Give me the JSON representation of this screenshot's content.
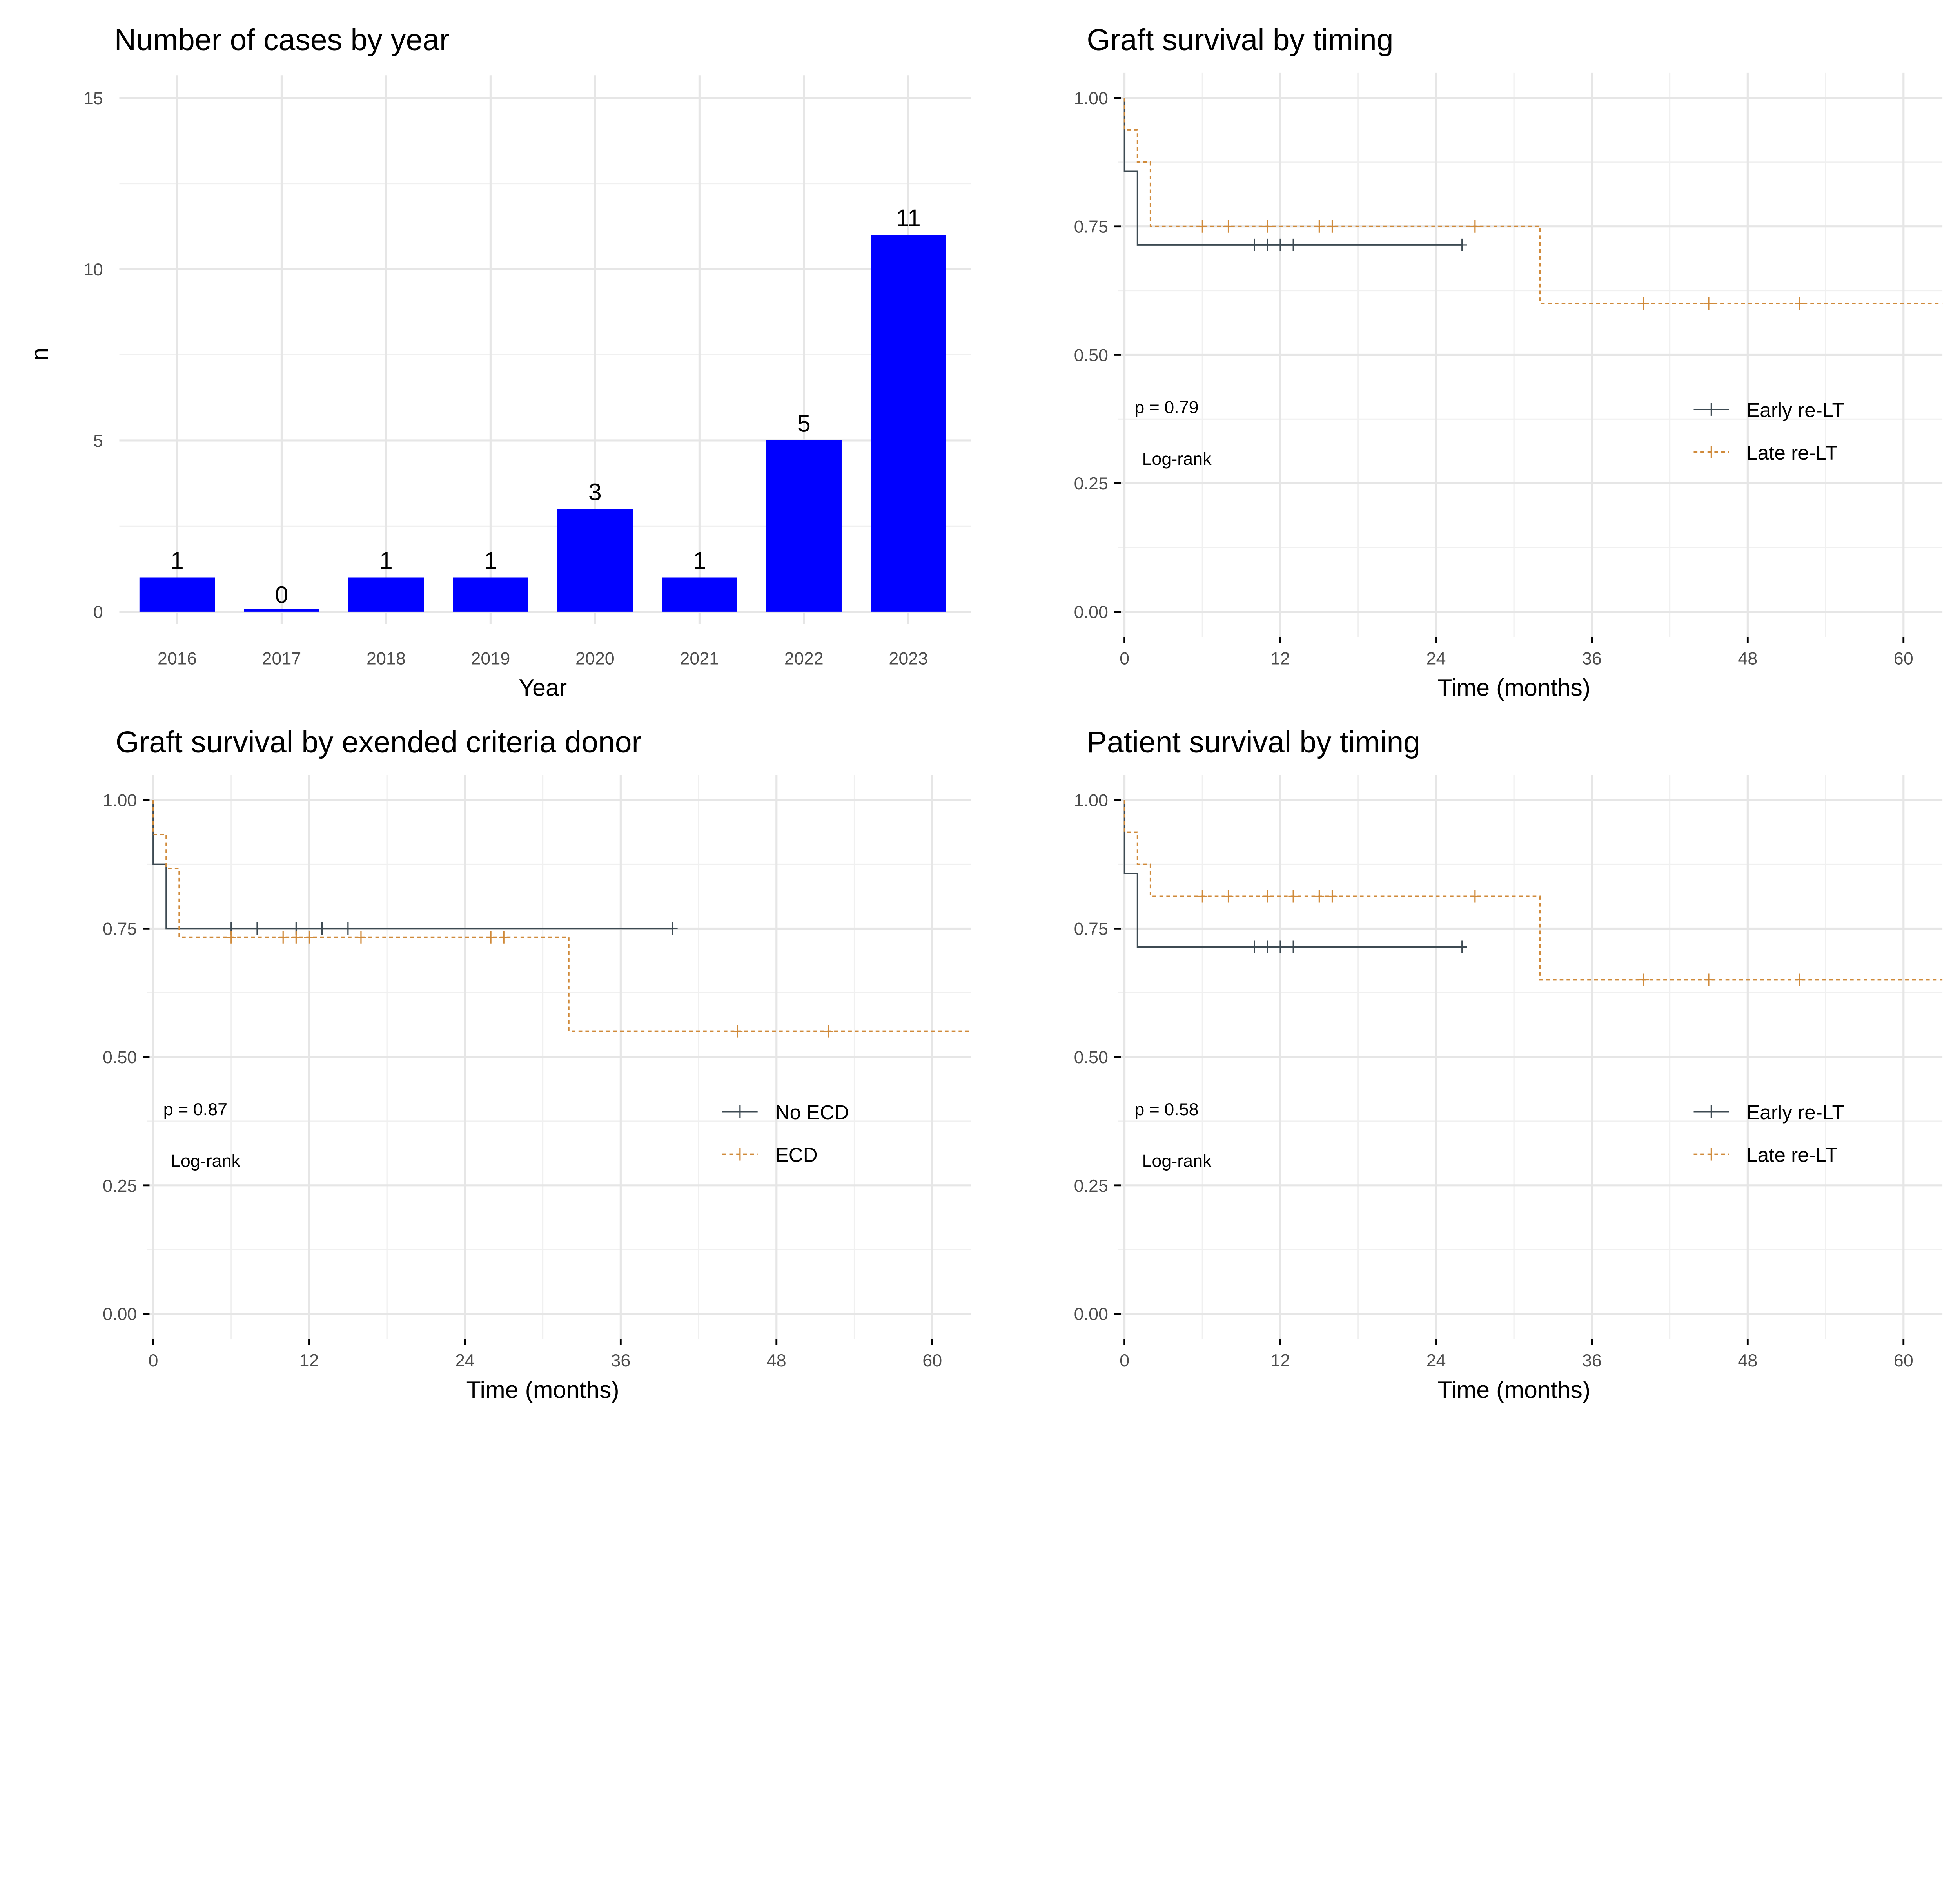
{
  "chart_data": [
    {
      "type": "bar",
      "title": "Number of cases by year",
      "xlabel": "Year",
      "ylabel": "n",
      "categories": [
        "2016",
        "2017",
        "2018",
        "2019",
        "2020",
        "2021",
        "2022",
        "2023"
      ],
      "values": [
        1,
        0,
        1,
        1,
        3,
        1,
        5,
        11
      ],
      "data_labels": [
        "1",
        "0",
        "1",
        "1",
        "3",
        "1",
        "5",
        "11"
      ],
      "ylim": [
        0,
        15
      ],
      "yticks": [
        0,
        5,
        10,
        15
      ],
      "ytick_labels": [
        "0",
        "5",
        "10",
        "15"
      ],
      "bar_color": "#0000FF",
      "grid": true
    },
    {
      "type": "line",
      "subtype": "kaplan-meier",
      "title": "Graft survival by timing",
      "xlabel": "Time (months)",
      "ylabel": "",
      "xlim": [
        0,
        63
      ],
      "ylim": [
        0,
        1
      ],
      "xticks": [
        0,
        12,
        24,
        36,
        48,
        60
      ],
      "xtick_labels": [
        "0",
        "12",
        "24",
        "36",
        "48",
        "60"
      ],
      "yticks": [
        0,
        0.25,
        0.5,
        0.75,
        1
      ],
      "ytick_labels": [
        "0.00",
        "0.25",
        "0.50",
        "0.75",
        "1.00"
      ],
      "pvalue": "p = 0.79",
      "test": "Log-rank",
      "legend_position": "right-middle",
      "series": [
        {
          "name": "Early re-LT",
          "color": "#3D4A52",
          "dash": false,
          "end": 26,
          "steps": [
            [
              0,
              1
            ],
            [
              0,
              0.857
            ],
            [
              1,
              0.714
            ]
          ],
          "censor": [
            10,
            11,
            12,
            13,
            26
          ]
        },
        {
          "name": "Late re-LT",
          "color": "#D08A3A",
          "dash": true,
          "end": 63,
          "steps": [
            [
              0,
              1
            ],
            [
              0,
              0.9375
            ],
            [
              1,
              0.875
            ],
            [
              2,
              0.75
            ],
            [
              32,
              0.6
            ]
          ],
          "censor": [
            6,
            8,
            11,
            15,
            16,
            27,
            40,
            45,
            52
          ]
        }
      ]
    },
    {
      "type": "line",
      "subtype": "kaplan-meier",
      "title": "Graft survival by exended criteria donor",
      "xlabel": "Time (months)",
      "ylabel": "",
      "xlim": [
        0,
        63
      ],
      "ylim": [
        0,
        1
      ],
      "xticks": [
        0,
        12,
        24,
        36,
        48,
        60
      ],
      "xtick_labels": [
        "0",
        "12",
        "24",
        "36",
        "48",
        "60"
      ],
      "yticks": [
        0,
        0.25,
        0.5,
        0.75,
        1
      ],
      "ytick_labels": [
        "0.00",
        "0.25",
        "0.50",
        "0.75",
        "1.00"
      ],
      "pvalue": "p = 0.87",
      "test": "Log-rank",
      "legend_position": "right-middle",
      "series": [
        {
          "name": "No ECD",
          "color": "#3D4A52",
          "dash": false,
          "end": 40,
          "steps": [
            [
              0,
              1
            ],
            [
              0,
              0.875
            ],
            [
              1,
              0.75
            ]
          ],
          "censor": [
            6,
            8,
            11,
            13,
            15,
            40
          ]
        },
        {
          "name": "ECD",
          "color": "#D08A3A",
          "dash": true,
          "end": 63,
          "steps": [
            [
              0,
              1
            ],
            [
              0,
              0.933
            ],
            [
              1,
              0.867
            ],
            [
              2,
              0.733
            ],
            [
              32,
              0.55
            ]
          ],
          "censor": [
            6,
            10,
            11,
            12,
            16,
            26,
            27,
            45,
            52
          ]
        }
      ]
    },
    {
      "type": "line",
      "subtype": "kaplan-meier",
      "title": "Patient survival by timing",
      "xlabel": "Time (months)",
      "ylabel": "",
      "xlim": [
        0,
        63
      ],
      "ylim": [
        0,
        1
      ],
      "xticks": [
        0,
        12,
        24,
        36,
        48,
        60
      ],
      "xtick_labels": [
        "0",
        "12",
        "24",
        "36",
        "48",
        "60"
      ],
      "yticks": [
        0,
        0.25,
        0.5,
        0.75,
        1
      ],
      "ytick_labels": [
        "0.00",
        "0.25",
        "0.50",
        "0.75",
        "1.00"
      ],
      "pvalue": "p = 0.58",
      "test": "Log-rank",
      "legend_position": "right-middle",
      "series": [
        {
          "name": "Early re-LT",
          "color": "#3D4A52",
          "dash": false,
          "end": 26,
          "steps": [
            [
              0,
              1
            ],
            [
              0,
              0.857
            ],
            [
              1,
              0.714
            ]
          ],
          "censor": [
            10,
            11,
            12,
            13,
            26
          ]
        },
        {
          "name": "Late re-LT",
          "color": "#D08A3A",
          "dash": true,
          "end": 63,
          "steps": [
            [
              0,
              1
            ],
            [
              0,
              0.9375
            ],
            [
              1,
              0.875
            ],
            [
              2,
              0.8125
            ],
            [
              32,
              0.65
            ]
          ],
          "censor": [
            6,
            8,
            11,
            13,
            15,
            16,
            27,
            40,
            45,
            52
          ]
        }
      ]
    }
  ]
}
